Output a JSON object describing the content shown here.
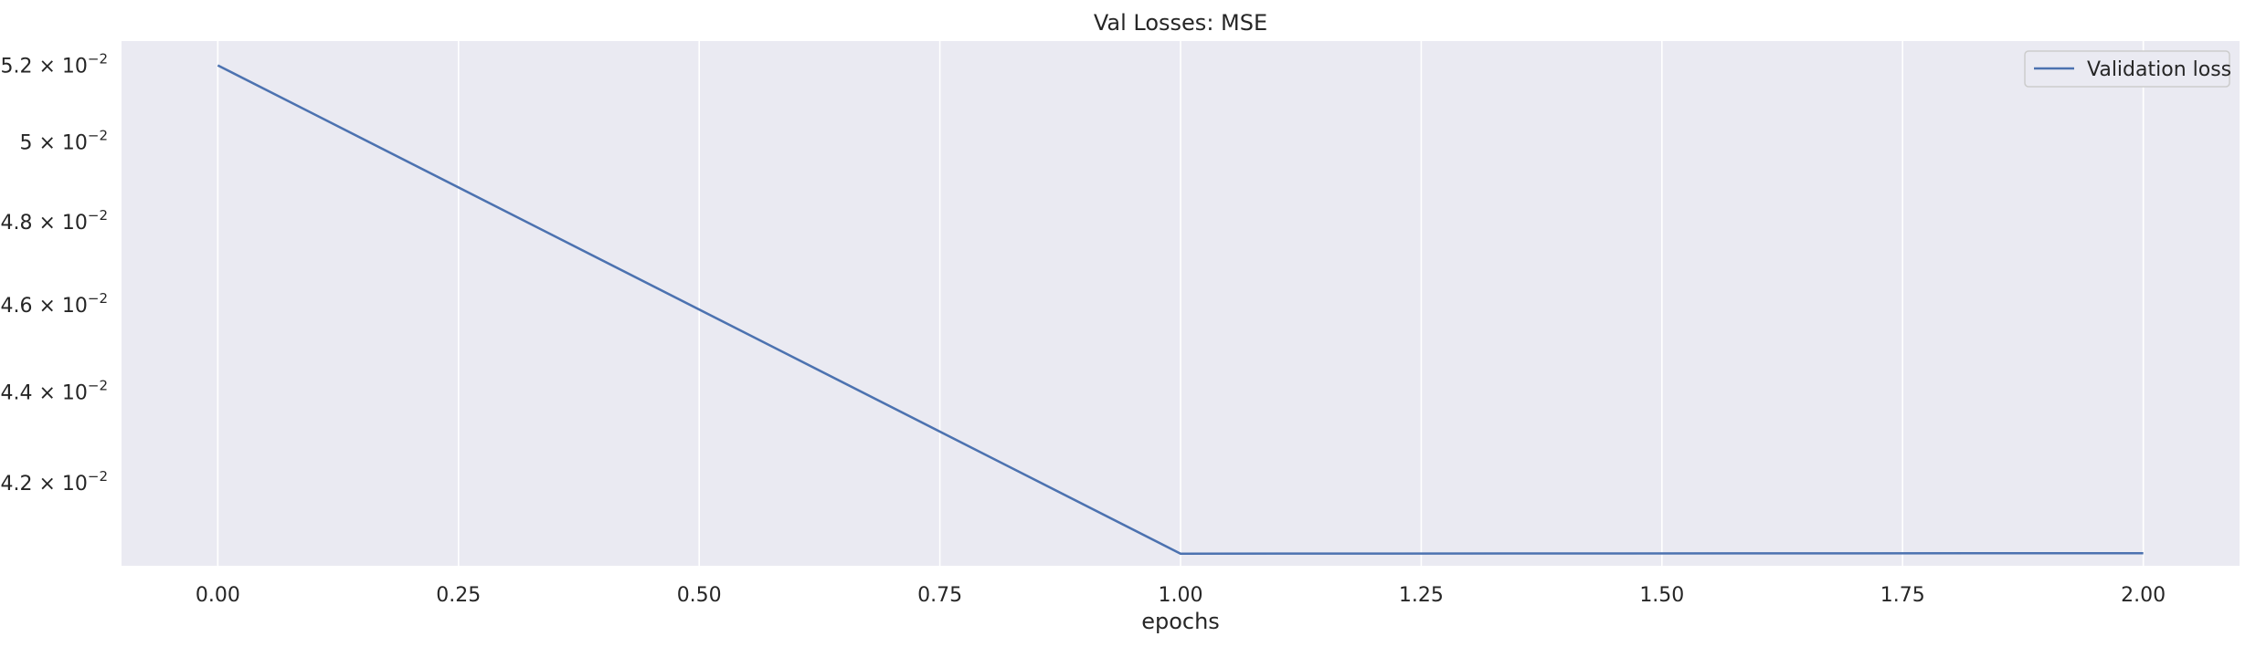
{
  "chart_data": {
    "type": "line",
    "title": "Val Losses:  MSE",
    "xlabel": "epochs",
    "ylabel": "",
    "yscale": "log",
    "xlim": [
      -0.1,
      2.1
    ],
    "ylim": [
      0.04025,
      0.05265
    ],
    "grid": true,
    "xticks": [
      0.0,
      0.25,
      0.5,
      0.75,
      1.0,
      1.25,
      1.5,
      1.75,
      2.0
    ],
    "xtick_labels": [
      "0.00",
      "0.25",
      "0.50",
      "0.75",
      "1.00",
      "1.25",
      "1.50",
      "1.75",
      "2.00"
    ],
    "yticks": [
      {
        "value": 0.052,
        "mantissa": "5.2",
        "base": "10",
        "exponent": "−2"
      },
      {
        "value": 0.05,
        "mantissa": "5",
        "base": "10",
        "exponent": "−2"
      },
      {
        "value": 0.048,
        "mantissa": "4.8",
        "base": "10",
        "exponent": "−2"
      },
      {
        "value": 0.046,
        "mantissa": "4.6",
        "base": "10",
        "exponent": "−2"
      },
      {
        "value": 0.044,
        "mantissa": "4.4",
        "base": "10",
        "exponent": "−2"
      },
      {
        "value": 0.042,
        "mantissa": "4.2",
        "base": "10",
        "exponent": "−2"
      }
    ],
    "legend_position": "top-right",
    "series": [
      {
        "name": "Validation loss",
        "color": "#4c72b0",
        "x": [
          0,
          1,
          2
        ],
        "y": [
          0.052,
          0.0405,
          0.04051
        ]
      }
    ],
    "colors": {
      "plot_background": "#eaeaf2",
      "grid": "#ffffff",
      "text": "#262626"
    }
  }
}
